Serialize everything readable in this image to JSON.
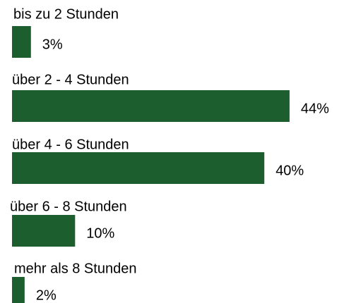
{
  "chart_data": {
    "type": "hbar",
    "categories": [
      "bis zu 2 Stunden",
      "über 2 - 4 Stunden",
      "über 4 - 6 Stunden",
      "über 6 - 8 Stunden",
      "mehr als 8 Stunden"
    ],
    "values": [
      3,
      44,
      40,
      10,
      2
    ],
    "value_labels": [
      "3%",
      "44%",
      "40%",
      "10%",
      "2%"
    ],
    "color": "#1d5e2e"
  }
}
